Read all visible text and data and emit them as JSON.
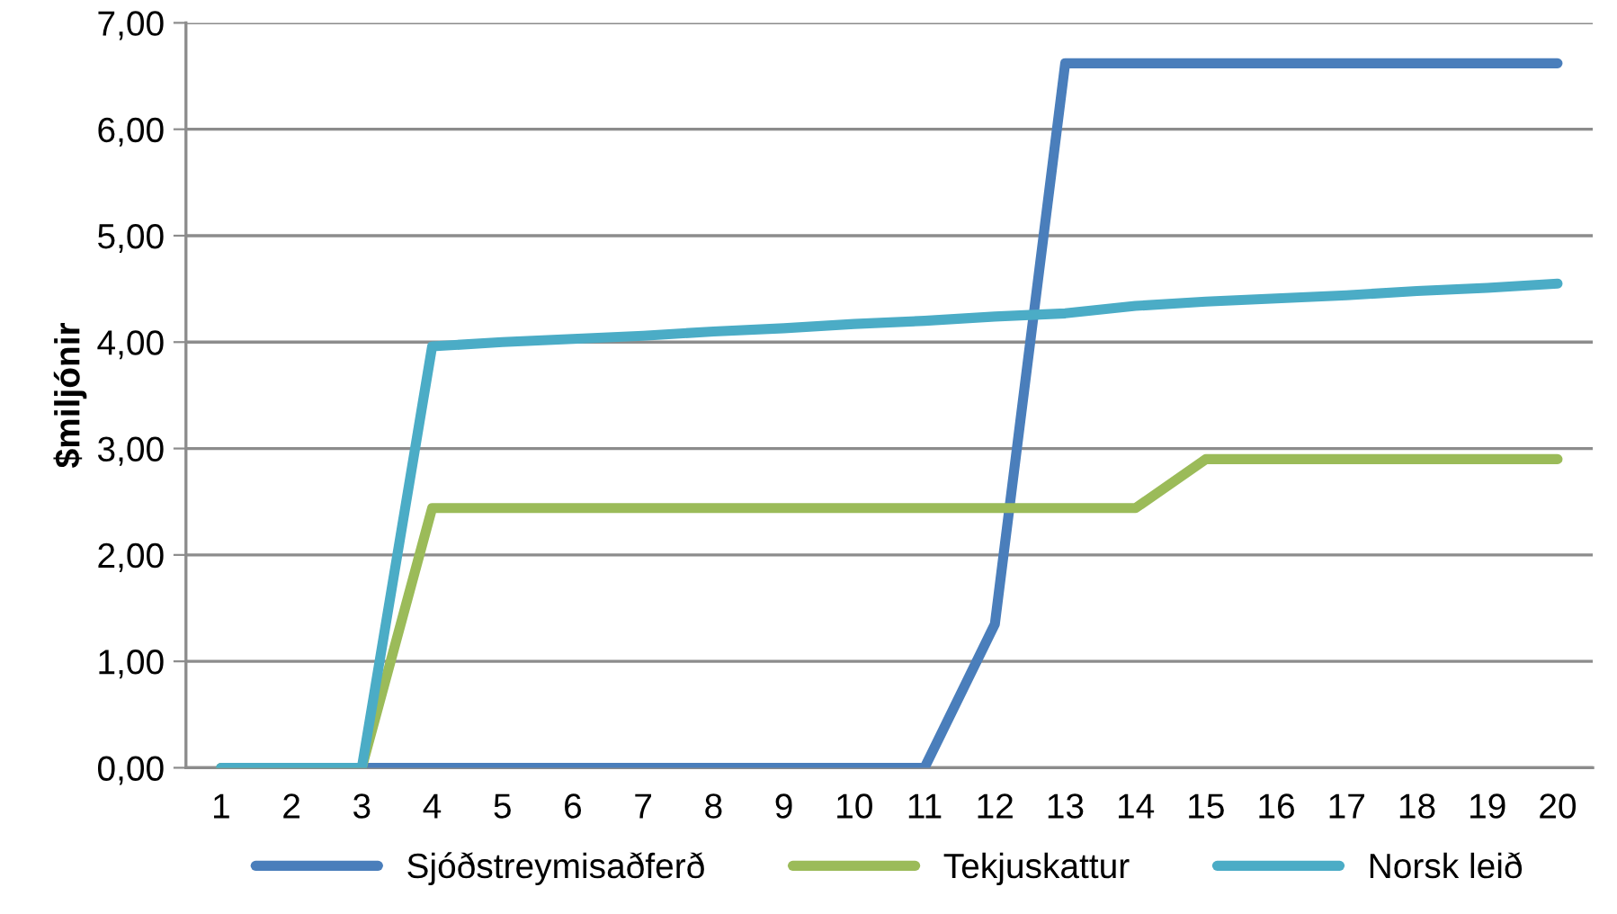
{
  "chart_data": {
    "type": "line",
    "ylabel": "$miljónir",
    "categories": [
      "1",
      "2",
      "3",
      "4",
      "5",
      "6",
      "7",
      "8",
      "9",
      "10",
      "11",
      "12",
      "13",
      "14",
      "15",
      "16",
      "17",
      "18",
      "19",
      "20"
    ],
    "series": [
      {
        "name": "Sjóðstreymisaðferð",
        "color": "#4a7ebb",
        "values": [
          0,
          0,
          0,
          0,
          0,
          0,
          0,
          0,
          0,
          0,
          0,
          1.35,
          6.62,
          6.62,
          6.62,
          6.62,
          6.62,
          6.62,
          6.62,
          6.62
        ]
      },
      {
        "name": "Tekjuskattur",
        "color": "#9bbb59",
        "values": [
          0,
          0,
          0,
          2.44,
          2.44,
          2.44,
          2.44,
          2.44,
          2.44,
          2.44,
          2.44,
          2.44,
          2.44,
          2.44,
          2.9,
          2.9,
          2.9,
          2.9,
          2.9,
          2.9
        ]
      },
      {
        "name": "Norsk leið",
        "color": "#4bacc6",
        "values": [
          0,
          0,
          0,
          3.96,
          4.0,
          4.03,
          4.06,
          4.1,
          4.13,
          4.17,
          4.2,
          4.24,
          4.27,
          4.34,
          4.38,
          4.41,
          4.44,
          4.48,
          4.51,
          4.55
        ]
      }
    ],
    "ylim": [
      0,
      7
    ],
    "yticks": [
      {
        "value": 0,
        "label": "0,00"
      },
      {
        "value": 1,
        "label": "1,00"
      },
      {
        "value": 2,
        "label": "2,00"
      },
      {
        "value": 3,
        "label": "3,00"
      },
      {
        "value": 4,
        "label": "4,00"
      },
      {
        "value": 5,
        "label": "5,00"
      },
      {
        "value": 6,
        "label": "6,00"
      },
      {
        "value": 7,
        "label": "7,00"
      }
    ],
    "grid": "y",
    "legend": "bottom",
    "marker": "none",
    "line_style": "solid"
  }
}
